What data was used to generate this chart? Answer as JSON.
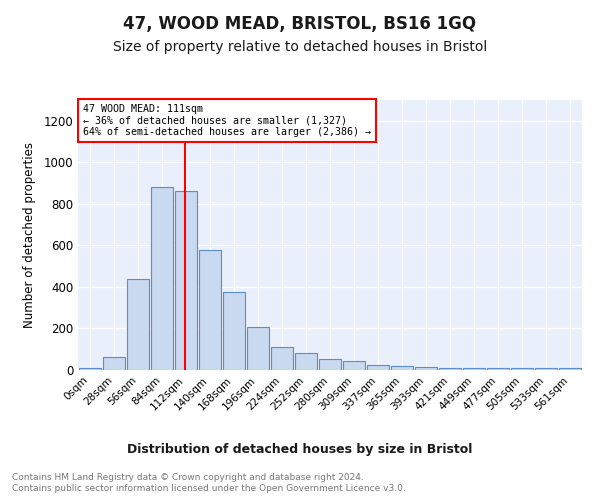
{
  "title": "47, WOOD MEAD, BRISTOL, BS16 1GQ",
  "subtitle": "Size of property relative to detached houses in Bristol",
  "xlabel": "Distribution of detached houses by size in Bristol",
  "ylabel": "Number of detached properties",
  "bin_labels": [
    "0sqm",
    "28sqm",
    "56sqm",
    "84sqm",
    "112sqm",
    "140sqm",
    "168sqm",
    "196sqm",
    "224sqm",
    "252sqm",
    "280sqm",
    "309sqm",
    "337sqm",
    "365sqm",
    "393sqm",
    "421sqm",
    "449sqm",
    "477sqm",
    "505sqm",
    "533sqm",
    "561sqm"
  ],
  "bar_heights": [
    12,
    65,
    440,
    880,
    860,
    580,
    375,
    205,
    110,
    80,
    55,
    45,
    22,
    18,
    15,
    10,
    10,
    8,
    8,
    8,
    10
  ],
  "bar_color": "#c9d9f0",
  "bar_edge_color": "#5b8dc8",
  "property_line_label": "47 WOOD MEAD: 111sqm",
  "annotation_line1": "← 36% of detached houses are smaller (1,327)",
  "annotation_line2": "64% of semi-detached houses are larger (2,386) →",
  "annotation_box_color": "white",
  "annotation_box_edge": "red",
  "vline_color": "red",
  "footer_line1": "Contains HM Land Registry data © Crown copyright and database right 2024.",
  "footer_line2": "Contains public sector information licensed under the Open Government Licence v3.0.",
  "ylim": [
    0,
    1300
  ],
  "yticks": [
    0,
    200,
    400,
    600,
    800,
    1000,
    1200
  ],
  "background_color": "#eaf0fb",
  "fig_background": "#ffffff",
  "title_fontsize": 12,
  "subtitle_fontsize": 10
}
